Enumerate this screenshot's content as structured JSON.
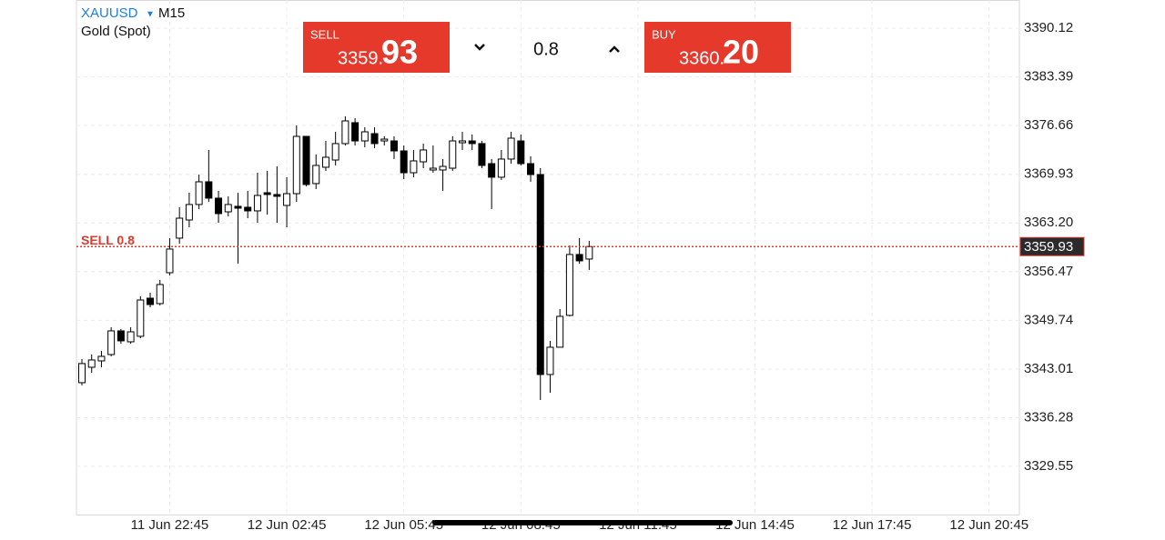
{
  "header": {
    "symbol": "XAUUSD",
    "timeframe": "M15",
    "description": "Gold (Spot)"
  },
  "trade_panel": {
    "sell_label": "SELL",
    "sell_price_main": "3359.",
    "sell_price_pips": "93",
    "volume": "0.8",
    "buy_label": "BUY",
    "buy_price_main": "3360.",
    "buy_price_pips": "20"
  },
  "chart_data": {
    "type": "candlestick",
    "x": [
      0,
      1,
      2,
      3,
      4,
      5,
      6,
      7,
      8,
      9,
      10,
      11,
      12,
      13,
      14,
      15,
      16,
      17,
      18,
      19,
      20,
      21,
      22,
      23,
      24,
      25,
      26,
      27,
      28,
      29,
      30,
      31,
      32,
      33,
      34,
      35,
      36,
      37,
      38,
      39,
      40,
      41,
      42,
      43,
      44,
      45,
      46,
      47,
      48,
      49,
      50,
      51,
      52
    ],
    "open": [
      3341.12,
      3343.25,
      3344.13,
      3345.01,
      3348.28,
      3346.77,
      3347.53,
      3352.8,
      3352.05,
      3356.32,
      3361.1,
      3363.61,
      3365.75,
      3368.89,
      3366.63,
      3364.74,
      3365.5,
      3365.37,
      3364.87,
      3367.38,
      3367.13,
      3365.62,
      3367.25,
      3375.17,
      3368.64,
      3370.9,
      3371.9,
      3374.17,
      3377.06,
      3374.54,
      3375.55,
      3374.54,
      3374.54,
      3373.16,
      3370.14,
      3371.65,
      3370.52,
      3370.52,
      3370.77,
      3374.29,
      3374.54,
      3374.17,
      3371.4,
      3369.52,
      3372.03,
      3374.54,
      3371.4,
      3369.89,
      3342.25,
      3346.02,
      3350.42,
      3358.84,
      3358.21
    ],
    "high": [
      3344.38,
      3345.01,
      3345.51,
      3348.78,
      3348.53,
      3348.78,
      3353.06,
      3353.56,
      3355.32,
      3361.1,
      3365.37,
      3367.38,
      3369.89,
      3373.29,
      3367.63,
      3366.88,
      3367.38,
      3367.63,
      3370.14,
      3370.4,
      3371.02,
      3369.52,
      3376.68,
      3375.17,
      3372.66,
      3374.54,
      3375.8,
      3377.94,
      3377.68,
      3376.43,
      3376.43,
      3375.17,
      3375.17,
      3373.91,
      3373.29,
      3374.17,
      3373.91,
      3372.03,
      3375.17,
      3375.8,
      3375.42,
      3374.54,
      3372.03,
      3373.29,
      3375.8,
      3375.42,
      3372.41,
      3370.77,
      3346.9,
      3351.3,
      3360.09,
      3361.1,
      3360.72
    ],
    "low": [
      3340.74,
      3342.5,
      3343.25,
      3344.76,
      3346.52,
      3346.52,
      3347.27,
      3351.55,
      3351.8,
      3355.94,
      3360.34,
      3362.6,
      3365.12,
      3366.12,
      3363.23,
      3364.11,
      3357.58,
      3363.86,
      3363.23,
      3364.36,
      3363.23,
      3362.6,
      3366.12,
      3368.26,
      3367.88,
      3370.4,
      3371.15,
      3373.91,
      3373.91,
      3373.66,
      3373.54,
      3373.91,
      3372.03,
      3369.26,
      3369.52,
      3370.77,
      3370.14,
      3367.63,
      3370.4,
      3373.29,
      3373.29,
      3370.77,
      3365.12,
      3369.14,
      3371.4,
      3371.15,
      3368.89,
      3338.73,
      3339.73,
      3346.02,
      3350.29,
      3357.58,
      3356.7
    ],
    "close": [
      3343.76,
      3344.26,
      3344.76,
      3348.28,
      3346.9,
      3348.15,
      3352.55,
      3351.92,
      3354.69,
      3359.59,
      3363.86,
      3365.75,
      3368.89,
      3366.63,
      3364.49,
      3365.75,
      3365.24,
      3364.87,
      3367.0,
      3367.13,
      3366.88,
      3367.25,
      3375.17,
      3368.51,
      3371.15,
      3372.28,
      3374.17,
      3377.31,
      3374.54,
      3375.8,
      3374.17,
      3374.79,
      3373.16,
      3370.14,
      3371.78,
      3373.29,
      3370.77,
      3371.02,
      3374.54,
      3374.54,
      3374.17,
      3371.15,
      3369.52,
      3372.03,
      3374.92,
      3371.4,
      3369.89,
      3342.25,
      3346.02,
      3350.29,
      3358.84,
      3357.96,
      3359.93
    ],
    "up_color": "#ffffff",
    "down_color": "#000000",
    "xlim": [
      -0.56,
      96.1
    ],
    "xticks": [
      {
        "value": 9,
        "label": "11 Jun 22:45"
      },
      {
        "value": 21,
        "label": "12 Jun 02:45"
      },
      {
        "value": 33,
        "label": "12 Jun 05:45"
      },
      {
        "value": 45,
        "label": "12 Jun 08:45"
      },
      {
        "value": 57,
        "label": "12 Jun 11:45"
      },
      {
        "value": 69,
        "label": "12 Jun 14:45"
      },
      {
        "value": 81,
        "label": "12 Jun 17:45"
      },
      {
        "value": 93,
        "label": "12 Jun 20:45"
      }
    ],
    "ylim": [
      3322.89,
      3394.02
    ],
    "yticks": [
      3390.12,
      3383.39,
      3376.66,
      3369.93,
      {
        "value": 3363.2,
        "label": "3363.20"
      },
      3356.47,
      3349.74,
      3343.01,
      3336.28,
      3329.55
    ],
    "grid": true,
    "price_line": {
      "value": 3359.93,
      "label": "SELL 0.8",
      "color": "#e0392b"
    }
  }
}
